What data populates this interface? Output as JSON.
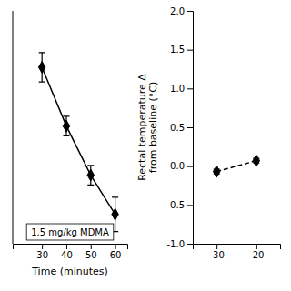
{
  "chart_data": [
    {
      "type": "line",
      "x": [
        30,
        40,
        50,
        60
      ],
      "series": [
        {
          "name": "1.5 mg/kg MDMA",
          "color": "black",
          "marker": "diamond",
          "line_style": "solid",
          "values": [
            1.02,
            0.78,
            0.58,
            0.42
          ],
          "errors": [
            0.06,
            0.04,
            0.04,
            0.07
          ]
        }
      ],
      "xlabel": "Time (minutes)",
      "xlim": [
        18,
        65
      ],
      "ylim": [
        0.3,
        1.25
      ],
      "xticks": [
        30,
        40,
        50,
        60
      ],
      "legend": "bottom",
      "tick_labels": "x"
    },
    {
      "type": "line",
      "x": [
        -30,
        -20
      ],
      "series": [
        {
          "color": "black",
          "marker": "diamond",
          "line_style": "dashed",
          "values": [
            -0.07,
            0.07
          ],
          "errors": [
            0.03,
            0.03
          ]
        }
      ],
      "ylabel": "Rectal temperature Δ\nfrom baseline (°C)",
      "xlim": [
        -36,
        -14
      ],
      "ylim": [
        -1.0,
        2.0
      ],
      "xticks": [
        -30,
        -20
      ],
      "yticks": [
        {
          "value": -1.0,
          "label": "-1.0"
        },
        {
          "value": -0.5,
          "label": "-0.5"
        },
        {
          "value": 0.0,
          "label": "0.0"
        },
        {
          "value": 0.5,
          "label": "0.5"
        },
        {
          "value": 1.0,
          "label": "1.0"
        },
        {
          "value": 1.5,
          "label": "1.5"
        },
        {
          "value": 2.0,
          "label": "2.0"
        }
      ]
    }
  ]
}
